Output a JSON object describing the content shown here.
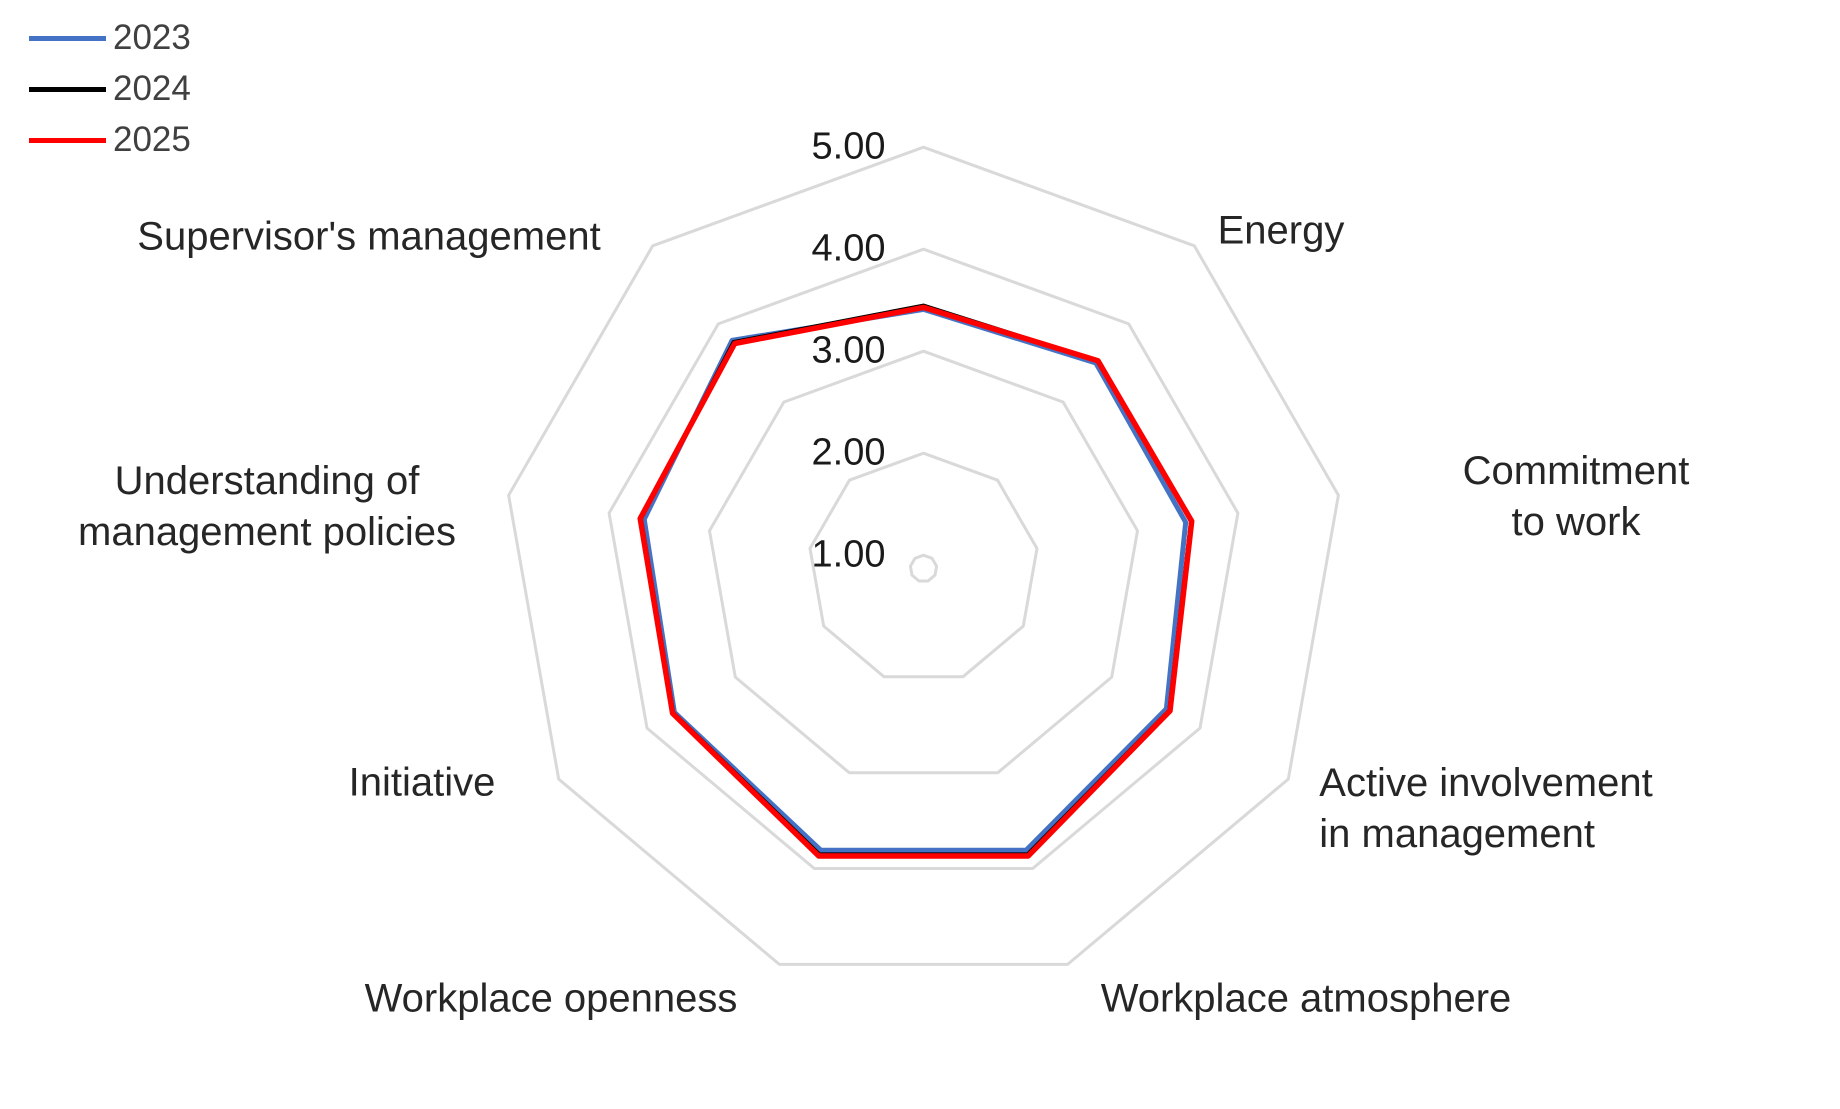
{
  "chart_data": {
    "type": "radar",
    "title": "",
    "categories": [
      "",
      "Energy",
      "Commitment to work",
      "Active involvement\nin management",
      "Workplace atmosphere",
      "Workplace openness",
      "Initiative",
      "Understanding of\nmanagement policies",
      "Supervisor's management"
    ],
    "series": [
      {
        "name": "2023",
        "color": "#4472C4",
        "stroke_width": 5,
        "values": [
          3.41,
          3.5,
          3.48,
          3.62,
          3.81,
          3.81,
          3.69,
          3.65,
          3.79
        ]
      },
      {
        "name": "2024",
        "color": "#000000",
        "stroke_width": 3.5,
        "values": [
          3.45,
          3.53,
          3.53,
          3.65,
          3.85,
          3.85,
          3.7,
          3.68,
          3.77
        ]
      },
      {
        "name": "2025",
        "color": "#FF0000",
        "stroke_width": 5.5,
        "values": [
          3.43,
          3.53,
          3.54,
          3.66,
          3.87,
          3.87,
          3.71,
          3.69,
          3.75
        ]
      }
    ],
    "r_axis": {
      "tick_labels": [
        "1.00",
        "2.00",
        "3.00",
        "4.00",
        "5.00"
      ],
      "tick_values": [
        1,
        2,
        3,
        4,
        5
      ],
      "max": 5,
      "center_value": 0.87
    },
    "grid_color": "#D9D9D9",
    "label_color": "#262626",
    "legend_position": "top-left",
    "grid_shape": "polygon",
    "start_angle_deg": 90,
    "clockwise": true,
    "spokes": false
  },
  "legend": {
    "items": [
      {
        "label": "2023",
        "color": "#4472C4"
      },
      {
        "label": "2024",
        "color": "#000000"
      },
      {
        "label": "2025",
        "color": "#FF0000"
      }
    ]
  }
}
